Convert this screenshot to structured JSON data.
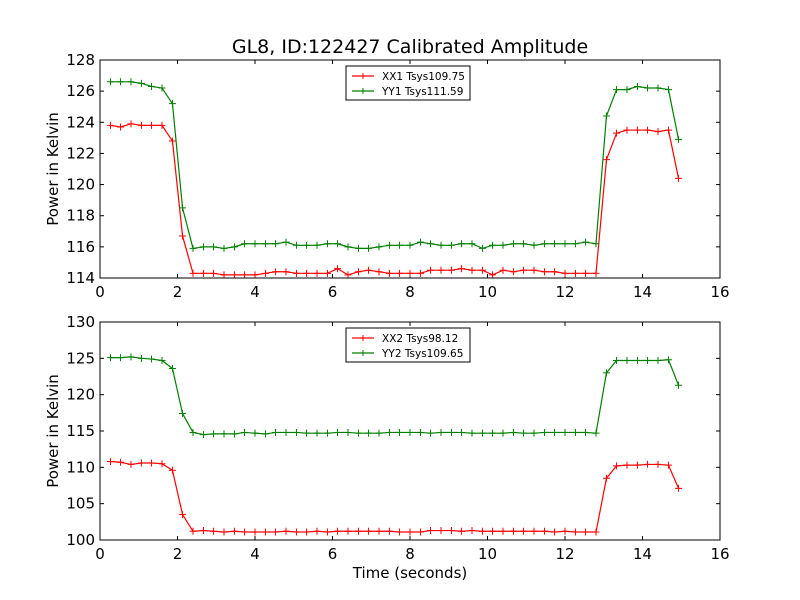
{
  "title": "GL8, ID:122427 Calibrated Amplitude",
  "chart_data": [
    {
      "type": "line",
      "ylabel": "Power in Kelvin",
      "xlabel": "",
      "xlim": [
        0,
        16
      ],
      "ylim": [
        114,
        128
      ],
      "xticks": [
        0,
        2,
        4,
        6,
        8,
        10,
        12,
        14,
        16
      ],
      "yticks": [
        114,
        116,
        118,
        120,
        122,
        124,
        126,
        128
      ],
      "legend_position": "top-center",
      "x": [
        0.27,
        0.53,
        0.8,
        1.07,
        1.33,
        1.6,
        1.87,
        2.13,
        2.4,
        2.67,
        2.93,
        3.2,
        3.47,
        3.73,
        4.0,
        4.27,
        4.53,
        4.8,
        5.07,
        5.33,
        5.6,
        5.87,
        6.13,
        6.4,
        6.67,
        6.93,
        7.2,
        7.47,
        7.73,
        8.0,
        8.27,
        8.53,
        8.8,
        9.07,
        9.33,
        9.6,
        9.87,
        10.13,
        10.4,
        10.67,
        10.93,
        11.2,
        11.47,
        11.73,
        12.0,
        12.27,
        12.53,
        12.8,
        13.07,
        13.33,
        13.6,
        13.87,
        14.13,
        14.4,
        14.67,
        14.93
      ],
      "series": [
        {
          "name": "XX1 Tsys109.75",
          "color": "#ff0000",
          "values": [
            123.8,
            123.7,
            123.9,
            123.8,
            123.8,
            123.8,
            122.8,
            116.7,
            114.3,
            114.3,
            114.3,
            114.2,
            114.2,
            114.2,
            114.2,
            114.3,
            114.4,
            114.4,
            114.3,
            114.3,
            114.3,
            114.3,
            114.6,
            114.2,
            114.4,
            114.5,
            114.4,
            114.3,
            114.3,
            114.3,
            114.3,
            114.5,
            114.5,
            114.5,
            114.6,
            114.5,
            114.5,
            114.2,
            114.5,
            114.4,
            114.5,
            114.5,
            114.4,
            114.4,
            114.3,
            114.3,
            114.3,
            114.3,
            121.6,
            123.3,
            123.5,
            123.5,
            123.5,
            123.4,
            123.5,
            120.4
          ]
        },
        {
          "name": "YY1 Tsys111.59",
          "color": "#008000",
          "values": [
            126.6,
            126.6,
            126.6,
            126.5,
            126.3,
            126.2,
            125.2,
            118.5,
            115.9,
            116.0,
            116.0,
            115.9,
            116.0,
            116.2,
            116.2,
            116.2,
            116.2,
            116.3,
            116.1,
            116.1,
            116.1,
            116.2,
            116.2,
            116.0,
            115.9,
            115.9,
            116.0,
            116.1,
            116.1,
            116.1,
            116.3,
            116.2,
            116.1,
            116.1,
            116.2,
            116.2,
            115.9,
            116.1,
            116.1,
            116.2,
            116.2,
            116.1,
            116.2,
            116.2,
            116.2,
            116.2,
            116.3,
            116.2,
            124.4,
            126.1,
            126.1,
            126.3,
            126.2,
            126.2,
            126.1,
            122.9
          ]
        }
      ]
    },
    {
      "type": "line",
      "ylabel": "Power in Kelvin",
      "xlabel": "Time (seconds)",
      "xlim": [
        0,
        16
      ],
      "ylim": [
        100,
        130
      ],
      "xticks": [
        0,
        2,
        4,
        6,
        8,
        10,
        12,
        14,
        16
      ],
      "yticks": [
        100,
        105,
        110,
        115,
        120,
        125,
        130
      ],
      "legend_position": "top-center",
      "x": [
        0.27,
        0.53,
        0.8,
        1.07,
        1.33,
        1.6,
        1.87,
        2.13,
        2.4,
        2.67,
        2.93,
        3.2,
        3.47,
        3.73,
        4.0,
        4.27,
        4.53,
        4.8,
        5.07,
        5.33,
        5.6,
        5.87,
        6.13,
        6.4,
        6.67,
        6.93,
        7.2,
        7.47,
        7.73,
        8.0,
        8.27,
        8.53,
        8.8,
        9.07,
        9.33,
        9.6,
        9.87,
        10.13,
        10.4,
        10.67,
        10.93,
        11.2,
        11.47,
        11.73,
        12.0,
        12.27,
        12.53,
        12.8,
        13.07,
        13.33,
        13.6,
        13.87,
        14.13,
        14.4,
        14.67,
        14.93
      ],
      "series": [
        {
          "name": "XX2 Tsys98.12",
          "color": "#ff0000",
          "values": [
            110.8,
            110.7,
            110.4,
            110.6,
            110.6,
            110.5,
            109.6,
            103.5,
            101.2,
            101.3,
            101.2,
            101.1,
            101.2,
            101.1,
            101.1,
            101.1,
            101.1,
            101.2,
            101.1,
            101.1,
            101.2,
            101.1,
            101.2,
            101.2,
            101.2,
            101.2,
            101.2,
            101.2,
            101.1,
            101.1,
            101.1,
            101.3,
            101.3,
            101.3,
            101.2,
            101.3,
            101.2,
            101.2,
            101.2,
            101.2,
            101.2,
            101.2,
            101.2,
            101.1,
            101.2,
            101.1,
            101.1,
            101.1,
            108.5,
            110.2,
            110.3,
            110.3,
            110.4,
            110.4,
            110.3,
            107.1
          ]
        },
        {
          "name": "YY2 Tsys109.65",
          "color": "#008000",
          "values": [
            125.1,
            125.1,
            125.2,
            125.0,
            124.9,
            124.7,
            123.6,
            117.4,
            114.8,
            114.5,
            114.6,
            114.6,
            114.6,
            114.8,
            114.7,
            114.6,
            114.8,
            114.8,
            114.8,
            114.7,
            114.7,
            114.7,
            114.8,
            114.8,
            114.7,
            114.7,
            114.7,
            114.8,
            114.8,
            114.8,
            114.8,
            114.7,
            114.8,
            114.8,
            114.8,
            114.7,
            114.7,
            114.7,
            114.7,
            114.8,
            114.7,
            114.7,
            114.8,
            114.8,
            114.8,
            114.8,
            114.8,
            114.7,
            123.0,
            124.7,
            124.7,
            124.7,
            124.7,
            124.7,
            124.8,
            121.3
          ]
        }
      ]
    }
  ]
}
